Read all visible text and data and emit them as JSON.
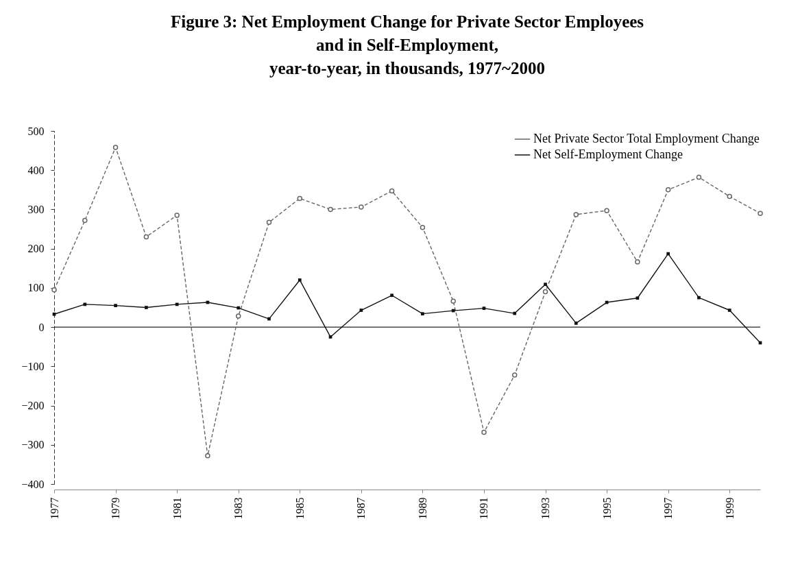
{
  "chart_data": {
    "type": "line",
    "title": "Figure 3:  Net Employment Change for Private Sector Employees\nand in Self-Employment,\nyear-to-year, in thousands, 1977~2000",
    "x": [
      1977,
      1978,
      1979,
      1980,
      1981,
      1982,
      1983,
      1984,
      1985,
      1986,
      1987,
      1988,
      1989,
      1990,
      1991,
      1992,
      1993,
      1994,
      1995,
      1996,
      1997,
      1998,
      1999,
      2000
    ],
    "xlim": [
      1977,
      2000
    ],
    "xticks": [
      1977,
      1979,
      1981,
      1983,
      1985,
      1987,
      1989,
      1991,
      1993,
      1995,
      1997,
      1999
    ],
    "ylim": [
      -400,
      500
    ],
    "yticks": [
      -400,
      -300,
      -200,
      -100,
      0,
      100,
      200,
      300,
      400,
      500
    ],
    "series": [
      {
        "name": "Net Private Sector Total Employment Change",
        "color": "#666666",
        "marker": "circle",
        "line_style": "dashed",
        "values": [
          95,
          272,
          458,
          230,
          285,
          -328,
          28,
          267,
          328,
          300,
          306,
          347,
          254,
          66,
          -268,
          -122,
          90,
          287,
          297,
          166,
          350,
          382,
          333,
          290
        ]
      },
      {
        "name": "Net Self-Employment Change",
        "color": "#111111",
        "marker": "square",
        "line_style": "solid",
        "values": [
          33,
          58,
          55,
          50,
          58,
          63,
          49,
          21,
          120,
          -25,
          43,
          81,
          34,
          42,
          48,
          35,
          109,
          10,
          63,
          74,
          187,
          75,
          43,
          -40
        ]
      }
    ],
    "ref_lines": [
      {
        "axis": "y",
        "value": 0,
        "color": "#222222"
      }
    ],
    "legend": "top right",
    "grid": false
  }
}
